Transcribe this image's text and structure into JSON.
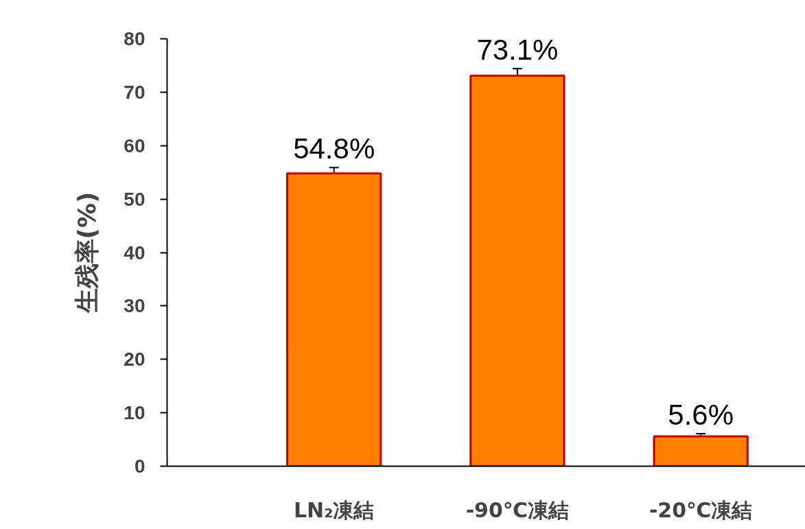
{
  "chart_data": {
    "type": "bar",
    "ylabel": "生残率(%)",
    "categories": [
      "LN₂凍結",
      "-90℃凍結",
      "-20℃凍結"
    ],
    "values": [
      54.8,
      73.1,
      5.6
    ],
    "errors": [
      1.1,
      1.3,
      0.5
    ],
    "value_labels": [
      "54.8%",
      "73.1%",
      "5.6%"
    ],
    "color": "#ff8000",
    "ylim": [
      0,
      80
    ],
    "yticks": [
      0,
      10,
      20,
      30,
      40,
      50,
      60,
      70,
      80
    ],
    "grid": false
  }
}
